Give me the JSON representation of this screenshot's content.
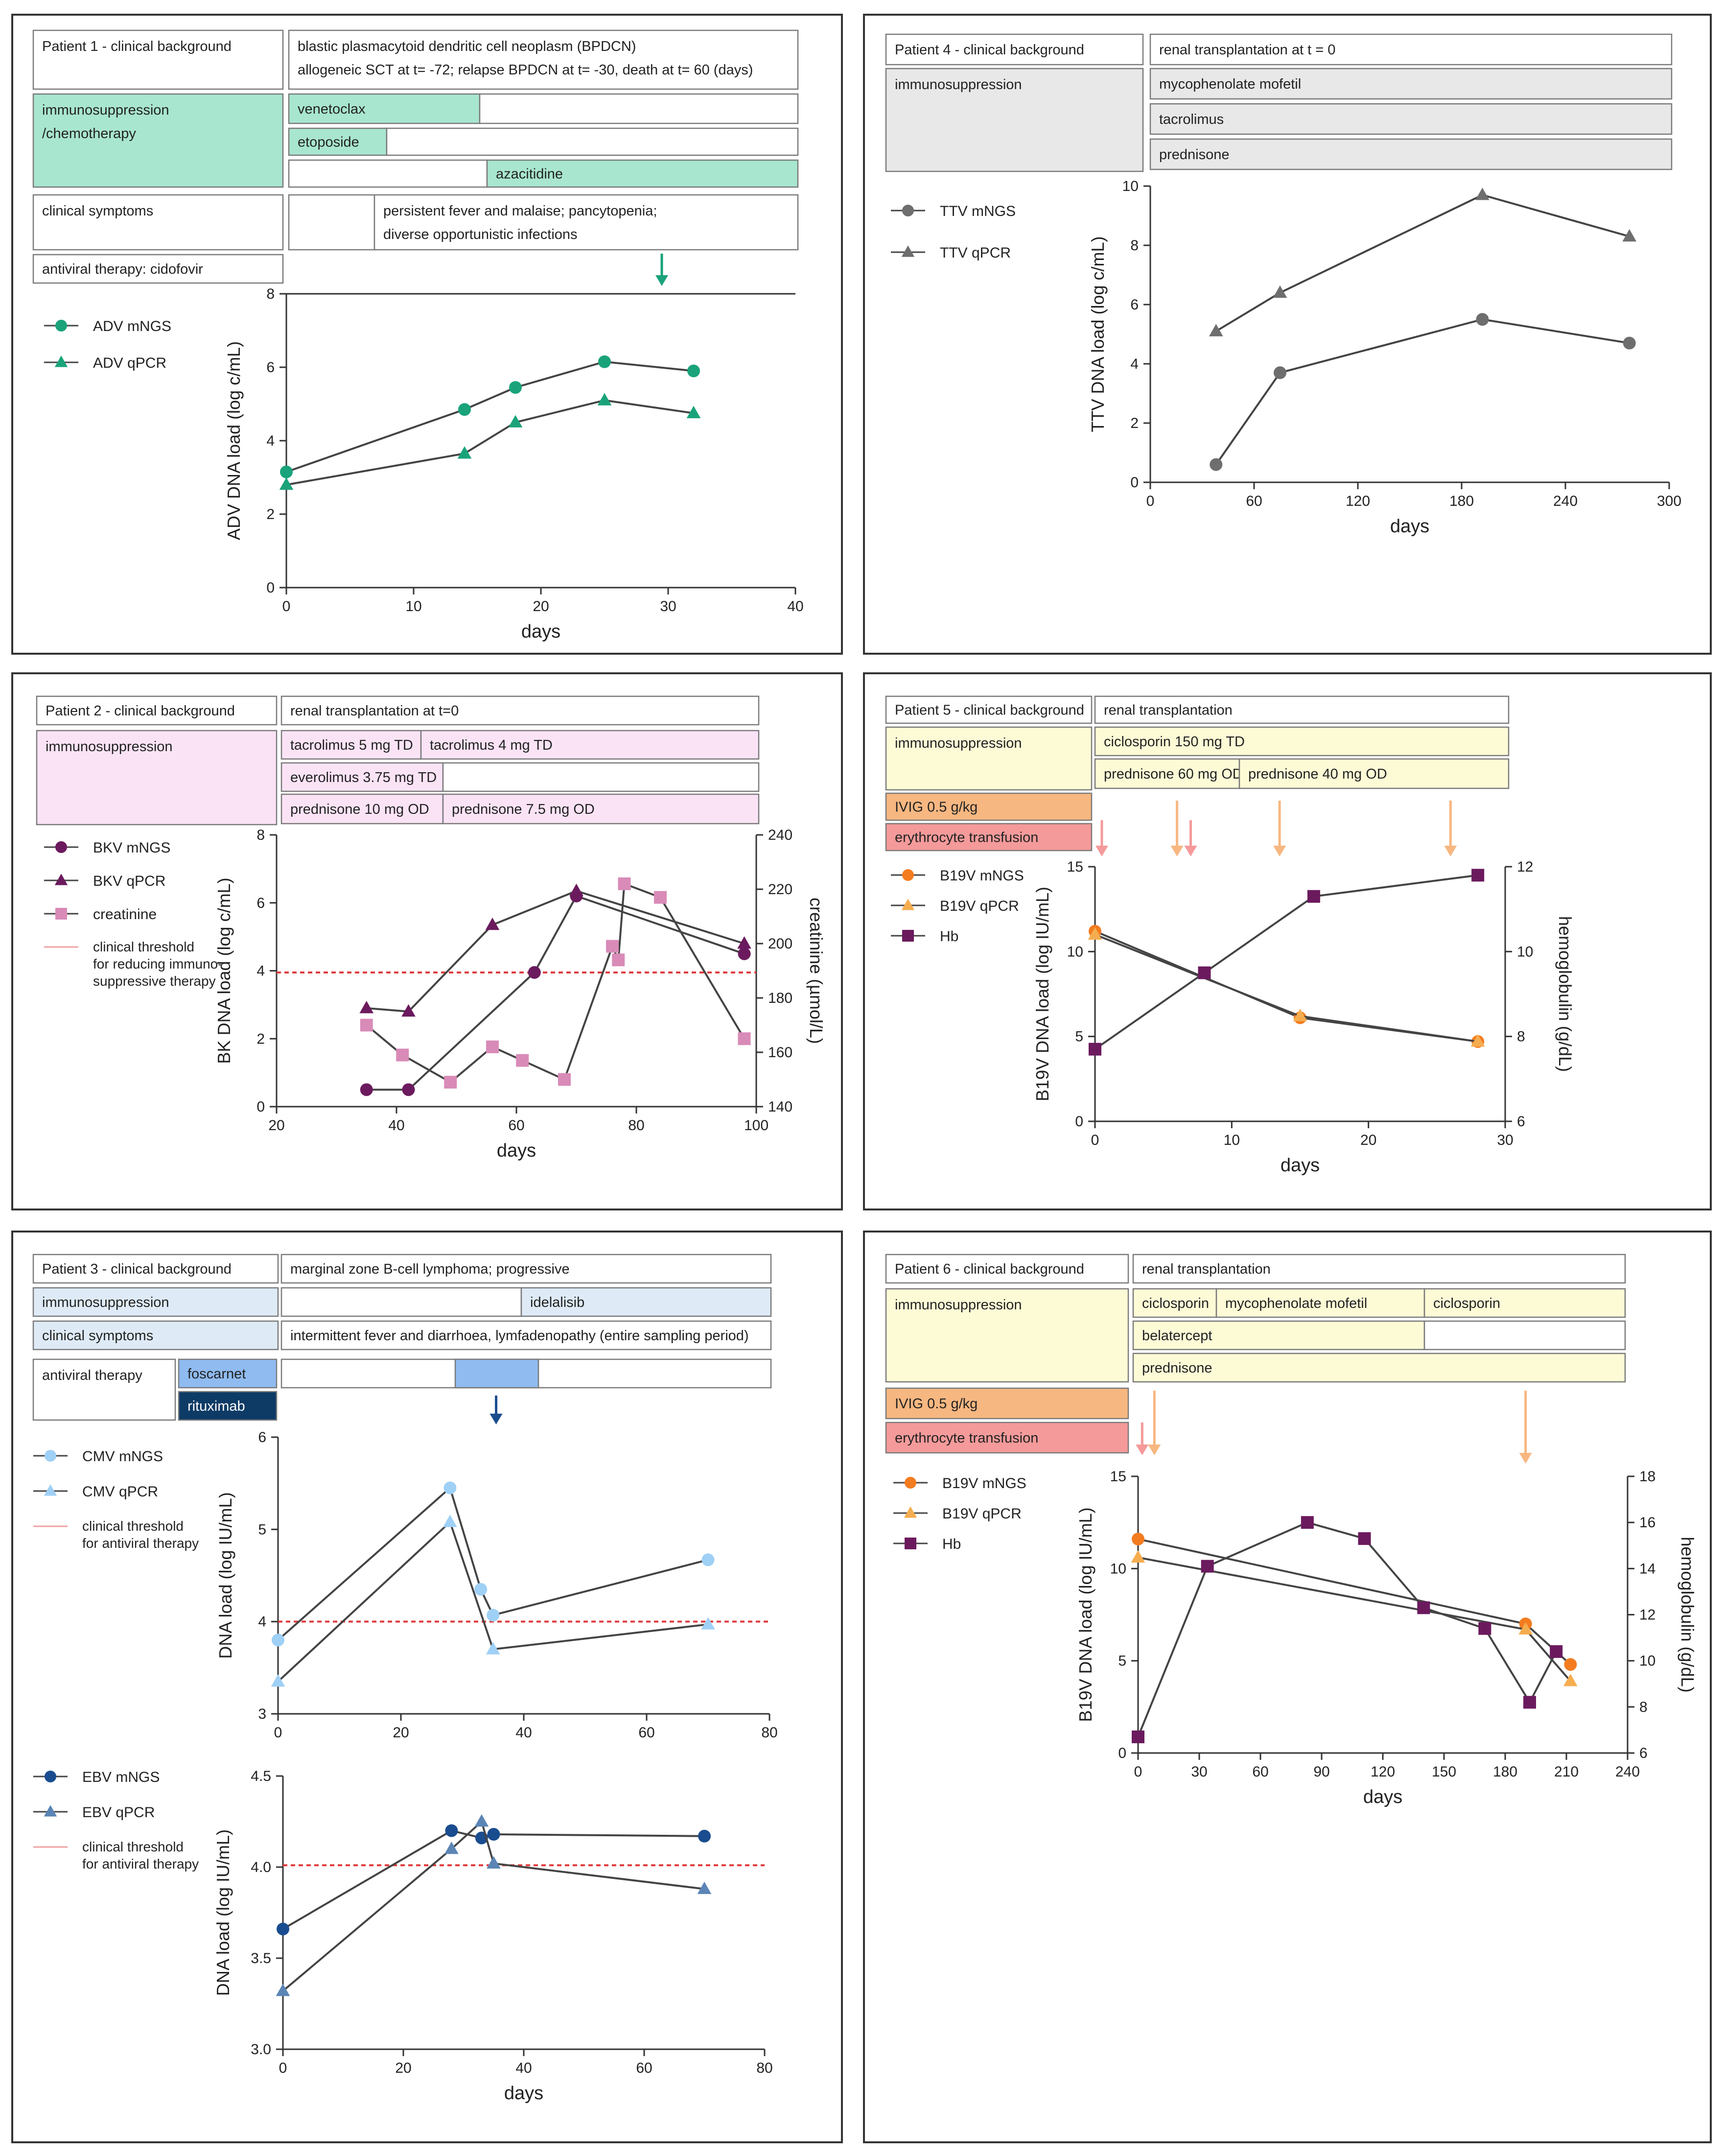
{
  "colors": {
    "green_fill": "#a8e6cf",
    "green_mark": "#1aa37a",
    "gray_fill": "#e8e8e8",
    "gray_mark": "#6e6e6e",
    "pink_fill": "#fbe3f6",
    "purple_mark": "#6b1a5e",
    "pinkmark": "#d98bb8",
    "yellow_fill": "#fdfbd6",
    "orange_fill": "#f7b781",
    "red_fill": "#f59a9a",
    "orange_mark": "#f47c20",
    "light_orange_mark": "#f5ad4f",
    "hb_mark": "#6b1a5e",
    "lightblue_fill": "#deebf7",
    "blue_fill": "#8fbbf0",
    "darkblue_fill": "#0d3b66",
    "cmv_mark": "#9fd0f5",
    "ebv_mark": "#1a4d8f",
    "threshold": "#e03a3a",
    "line": "#444444"
  },
  "panels": [
    {
      "id": "p1",
      "boxes": [
        {
          "text": "Patient 1 - clinical background",
          "fill": "#ffffff"
        },
        {
          "text": "blastic plasmacytoid dendritic cell neoplasm (BPDCN)",
          "fill": "#ffffff"
        },
        {
          "text": "allogeneic SCT at t= -72; relapse BPDCN at t= -30, death at t= 60 (days)",
          "fill": "none"
        },
        {
          "text": "immunosuppression",
          "fill": "#a8e6cf"
        },
        {
          "text": "/chemotherapy",
          "fill": "none"
        },
        {
          "text": "venetoclax",
          "fill": "#a8e6cf"
        },
        {
          "text": "",
          "fill": "#ffffff"
        },
        {
          "text": "etoposide",
          "fill": "#a8e6cf"
        },
        {
          "text": "",
          "fill": "#ffffff"
        },
        {
          "text": "",
          "fill": "#ffffff"
        },
        {
          "text": "azacitidine",
          "fill": "#a8e6cf"
        },
        {
          "text": "clinical symptoms",
          "fill": "#ffffff"
        },
        {
          "text": "",
          "fill": "#ffffff"
        },
        {
          "text": "persistent fever and malaise; pancytopenia;",
          "fill": "#ffffff"
        },
        {
          "text": "diverse opportunistic infections",
          "fill": "none"
        },
        {
          "text": "antiviral therapy: cidofovir",
          "fill": "#ffffff"
        }
      ]
    },
    {
      "id": "p4",
      "boxes": [
        {
          "text": "Patient 4 - clinical background",
          "fill": "#ffffff"
        },
        {
          "text": "renal transplantation at t = 0",
          "fill": "#ffffff"
        },
        {
          "text": "immunosuppression",
          "fill": "#e8e8e8"
        },
        {
          "text": "mycophenolate mofetil",
          "fill": "#e8e8e8"
        },
        {
          "text": "tacrolimus",
          "fill": "#e8e8e8"
        },
        {
          "text": "prednisone",
          "fill": "#e8e8e8"
        }
      ]
    },
    {
      "id": "p2",
      "boxes": [
        {
          "text": "Patient 2 - clinical background",
          "fill": "#ffffff"
        },
        {
          "text": "renal transplantation at t=0",
          "fill": "#ffffff"
        },
        {
          "text": "immunosuppression",
          "fill": "#fbe3f6"
        },
        {
          "text": "tacrolimus 5 mg TD",
          "fill": "#fbe3f6"
        },
        {
          "text": "tacrolimus 4 mg TD",
          "fill": "#fbe3f6"
        },
        {
          "text": "everolimus 3.75 mg TD",
          "fill": "#fbe3f6"
        },
        {
          "text": "",
          "fill": "#ffffff"
        },
        {
          "text": "prednisone 10 mg OD",
          "fill": "#fbe3f6"
        },
        {
          "text": "prednisone 7.5 mg OD",
          "fill": "#fbe3f6"
        }
      ]
    },
    {
      "id": "p5",
      "boxes": [
        {
          "text": "Patient 5 - clinical background",
          "fill": "#ffffff"
        },
        {
          "text": "renal transplantation",
          "fill": "#ffffff"
        },
        {
          "text": "immunosuppression",
          "fill": "#fdfbd6"
        },
        {
          "text": "ciclosporin 150 mg TD",
          "fill": "#fdfbd6"
        },
        {
          "text": "prednisone 60 mg OD",
          "fill": "#fdfbd6"
        },
        {
          "text": "prednisone 40 mg OD",
          "fill": "#fdfbd6"
        },
        {
          "text": "IVIG 0.5 g/kg",
          "fill": "#f7b781"
        },
        {
          "text": "erythrocyte transfusion",
          "fill": "#f59a9a"
        }
      ]
    },
    {
      "id": "p3",
      "boxes": [
        {
          "text": "Patient 3 - clinical background",
          "fill": "#ffffff"
        },
        {
          "text": "marginal zone B-cell lymphoma; progressive",
          "fill": "#ffffff"
        },
        {
          "text": "immunosuppression",
          "fill": "#deebf7"
        },
        {
          "text": "",
          "fill": "#ffffff"
        },
        {
          "text": "idelalisib",
          "fill": "#deebf7"
        },
        {
          "text": "clinical symptoms",
          "fill": "#deebf7"
        },
        {
          "text": "intermittent fever and diarrhoea, lymfadenopathy (entire sampling period)",
          "fill": "#ffffff"
        },
        {
          "text": "antiviral therapy",
          "fill": "#ffffff"
        },
        {
          "text": "foscarnet",
          "fill": "#8fbbf0"
        },
        {
          "text": "",
          "fill": "#ffffff"
        },
        {
          "text": "",
          "fill": "#8fbbf0"
        },
        {
          "text": "rituximab",
          "fill": "#0d3b66",
          "color": "#ffffff"
        }
      ]
    },
    {
      "id": "p6",
      "boxes": [
        {
          "text": "Patient 6 - clinical background",
          "fill": "#ffffff"
        },
        {
          "text": "renal transplantation",
          "fill": "#ffffff"
        },
        {
          "text": "immunosuppression",
          "fill": "#fdfbd6"
        },
        {
          "text": "ciclosporin",
          "fill": "#fdfbd6"
        },
        {
          "text": "mycophenolate mofetil",
          "fill": "#fdfbd6"
        },
        {
          "text": "ciclosporin",
          "fill": "#fdfbd6"
        },
        {
          "text": "belatercept",
          "fill": "#fdfbd6"
        },
        {
          "text": "",
          "fill": "#ffffff"
        },
        {
          "text": "prednisone",
          "fill": "#fdfbd6"
        },
        {
          "text": "IVIG 0.5 g/kg",
          "fill": "#f7b781"
        },
        {
          "text": "erythrocyte transfusion",
          "fill": "#f59a9a"
        }
      ]
    }
  ],
  "chart_data": [
    {
      "id": "c1",
      "type": "line",
      "panel": "Patient 1",
      "xlabel": "days",
      "ylabel": "ADV DNA load (log c/mL)",
      "xlim": [
        0,
        40
      ],
      "ylim": [
        0,
        8
      ],
      "xticks": [
        0,
        10,
        20,
        30,
        40
      ],
      "yticks": [
        0,
        2,
        4,
        6,
        8
      ],
      "series": [
        {
          "name": "ADV mNGS",
          "marker": "circle",
          "color": "#1aa37a",
          "x": [
            0,
            14,
            18,
            25,
            32
          ],
          "y": [
            3.15,
            4.85,
            5.45,
            6.15,
            5.9
          ]
        },
        {
          "name": "ADV qPCR",
          "marker": "triangle",
          "color": "#1aa37a",
          "x": [
            0,
            14,
            18,
            25,
            32
          ],
          "y": [
            2.8,
            3.65,
            4.5,
            5.1,
            4.75
          ]
        }
      ],
      "arrows": [
        {
          "x": 29.5,
          "color": "#1aa37a"
        }
      ]
    },
    {
      "id": "c4",
      "type": "line",
      "panel": "Patient 4",
      "xlabel": "days",
      "ylabel": "TTV DNA load (log c/mL)",
      "xlim": [
        0,
        300
      ],
      "ylim": [
        0,
        10
      ],
      "xticks": [
        0,
        60,
        120,
        180,
        240,
        300
      ],
      "yticks": [
        0,
        2,
        4,
        6,
        8,
        10
      ],
      "series": [
        {
          "name": "TTV mNGS",
          "marker": "circle",
          "color": "#6e6e6e",
          "x": [
            38,
            75,
            192,
            277
          ],
          "y": [
            0.6,
            3.7,
            5.5,
            4.7
          ]
        },
        {
          "name": "TTV qPCR",
          "marker": "triangle",
          "color": "#6e6e6e",
          "x": [
            38,
            75,
            192,
            277
          ],
          "y": [
            5.1,
            6.4,
            9.7,
            8.3
          ]
        }
      ]
    },
    {
      "id": "c2",
      "type": "line",
      "panel": "Patient 2",
      "xlabel": "days",
      "ylabel": "BK DNA load (log c/mL)",
      "y2label": "creatinine (µmol/L)",
      "xlim": [
        20,
        100
      ],
      "ylim": [
        0,
        8
      ],
      "y2lim": [
        140,
        240
      ],
      "xticks": [
        20,
        40,
        60,
        80,
        100
      ],
      "yticks": [
        0,
        2,
        4,
        6,
        8
      ],
      "y2ticks": [
        140,
        160,
        180,
        200,
        220,
        240
      ],
      "threshold": {
        "y": 3.95,
        "label": "clinical threshold for reducing immuno-suppressive therapy"
      },
      "series": [
        {
          "name": "BKV mNGS",
          "marker": "circle",
          "color": "#6b1a5e",
          "axis": "left",
          "x": [
            35,
            42,
            63,
            70,
            98
          ],
          "y": [
            0.5,
            0.5,
            3.95,
            6.2,
            4.5
          ]
        },
        {
          "name": "BKV qPCR",
          "marker": "triangle",
          "color": "#6b1a5e",
          "axis": "left",
          "x": [
            35,
            42,
            56,
            70,
            98
          ],
          "y": [
            2.9,
            2.8,
            5.35,
            6.35,
            4.8
          ]
        },
        {
          "name": "creatinine",
          "marker": "square",
          "color": "#d98bb8",
          "axis": "right",
          "x": [
            35,
            41,
            49,
            56,
            61,
            68,
            76,
            77,
            78,
            84,
            98
          ],
          "y": [
            170,
            159,
            149,
            162,
            157,
            150,
            199,
            194,
            222,
            217,
            165
          ]
        }
      ]
    },
    {
      "id": "c5",
      "type": "line",
      "panel": "Patient 5",
      "xlabel": "days",
      "ylabel": "B19V DNA load (log IU/mL)",
      "y2label": "hemoglobulin (g/dL)",
      "xlim": [
        0,
        30
      ],
      "ylim": [
        0,
        15
      ],
      "y2lim": [
        6,
        12
      ],
      "xticks": [
        0,
        10,
        20,
        30
      ],
      "yticks": [
        0,
        5,
        10,
        15
      ],
      "y2ticks": [
        6,
        8,
        10,
        12
      ],
      "series": [
        {
          "name": "B19V mNGS",
          "marker": "circle",
          "color": "#f47c20",
          "axis": "left",
          "x": [
            0,
            15,
            28
          ],
          "y": [
            11.2,
            6.1,
            4.7
          ]
        },
        {
          "name": "B19V qPCR",
          "marker": "triangle",
          "color": "#f5ad4f",
          "axis": "left",
          "x": [
            0,
            15,
            28
          ],
          "y": [
            11.0,
            6.2,
            4.7
          ]
        },
        {
          "name": "Hb",
          "marker": "square",
          "color": "#6b1a5e",
          "axis": "right",
          "x": [
            0,
            8,
            16,
            28
          ],
          "y": [
            7.7,
            9.5,
            11.3,
            11.8
          ]
        }
      ],
      "arrows": [
        {
          "x": 0.5,
          "color": "#f59a9a"
        },
        {
          "x": 6,
          "color": "#f7b781"
        },
        {
          "x": 7,
          "color": "#f59a9a"
        },
        {
          "x": 13.5,
          "color": "#f7b781"
        },
        {
          "x": 26,
          "color": "#f7b781"
        }
      ]
    },
    {
      "id": "c3a",
      "type": "line",
      "panel": "Patient 3 (CMV)",
      "xlabel": "",
      "ylabel": "DNA load (log IU/mL)",
      "xlim": [
        0,
        80
      ],
      "ylim": [
        3,
        6
      ],
      "xticks": [
        0,
        20,
        40,
        60,
        80
      ],
      "yticks": [
        3,
        4,
        5,
        6
      ],
      "threshold": {
        "y": 4.0,
        "label": "clinical threshold for antiviral therapy"
      },
      "series": [
        {
          "name": "CMV mNGS",
          "marker": "circle",
          "color": "#9fd0f5",
          "x": [
            0,
            28,
            33,
            35,
            70
          ],
          "y": [
            3.8,
            5.45,
            4.35,
            4.07,
            4.67
          ]
        },
        {
          "name": "CMV qPCR",
          "marker": "triangle",
          "color": "#9fd0f5",
          "x": [
            0,
            28,
            35,
            70
          ],
          "y": [
            3.35,
            5.08,
            3.7,
            3.97
          ]
        }
      ],
      "arrows": [
        {
          "x": 35.5,
          "color": "#1a4d8f"
        }
      ]
    },
    {
      "id": "c3b",
      "type": "line",
      "panel": "Patient 3 (EBV)",
      "xlabel": "days",
      "ylabel": "DNA load (log IU/mL)",
      "xlim": [
        0,
        80
      ],
      "ylim": [
        3.0,
        4.5
      ],
      "xticks": [
        0,
        20,
        40,
        60,
        80
      ],
      "yticks": [
        3.0,
        3.5,
        4.0,
        4.5
      ],
      "ytick_labels": [
        "3.0",
        "3.5",
        "4.0",
        "4.5"
      ],
      "threshold": {
        "y": 4.01,
        "label": "clinical threshold for antiviral therapy"
      },
      "series": [
        {
          "name": "EBV mNGS",
          "marker": "circle",
          "color": "#1a4d8f",
          "x": [
            0,
            28,
            33,
            35,
            70
          ],
          "y": [
            3.66,
            4.2,
            4.16,
            4.18,
            4.17
          ]
        },
        {
          "name": "EBV qPCR",
          "marker": "triangle",
          "color": "#5b85b5",
          "x": [
            0,
            28,
            33,
            35,
            70
          ],
          "y": [
            3.32,
            4.1,
            4.25,
            4.02,
            3.88
          ]
        }
      ]
    },
    {
      "id": "c6",
      "type": "line",
      "panel": "Patient 6",
      "xlabel": "days",
      "ylabel": "B19V DNA load (log IU/mL)",
      "y2label": "hemoglobulin (g/dL)",
      "xlim": [
        0,
        240
      ],
      "ylim": [
        0,
        15
      ],
      "y2lim": [
        6,
        18
      ],
      "xticks": [
        0,
        30,
        60,
        90,
        120,
        150,
        180,
        210,
        240
      ],
      "yticks": [
        0,
        5,
        10,
        15
      ],
      "y2ticks": [
        6,
        8,
        10,
        12,
        14,
        16,
        18
      ],
      "series": [
        {
          "name": "B19V mNGS",
          "marker": "circle",
          "color": "#f47c20",
          "axis": "left",
          "x": [
            0,
            190,
            212
          ],
          "y": [
            11.6,
            7.0,
            4.8
          ]
        },
        {
          "name": "B19V qPCR",
          "marker": "triangle",
          "color": "#f5ad4f",
          "axis": "left",
          "x": [
            0,
            190,
            212
          ],
          "y": [
            10.6,
            6.7,
            3.9
          ]
        },
        {
          "name": "Hb",
          "marker": "square",
          "color": "#6b1a5e",
          "axis": "right",
          "x": [
            0,
            34,
            83,
            111,
            140,
            170,
            192,
            205
          ],
          "y": [
            6.7,
            14.1,
            16.0,
            15.3,
            12.3,
            11.4,
            8.2,
            10.4
          ]
        }
      ],
      "arrows": [
        {
          "x": 2,
          "color": "#f59a9a"
        },
        {
          "x": 8,
          "color": "#f7b781"
        },
        {
          "x": 190,
          "color": "#f7b781"
        }
      ]
    }
  ]
}
